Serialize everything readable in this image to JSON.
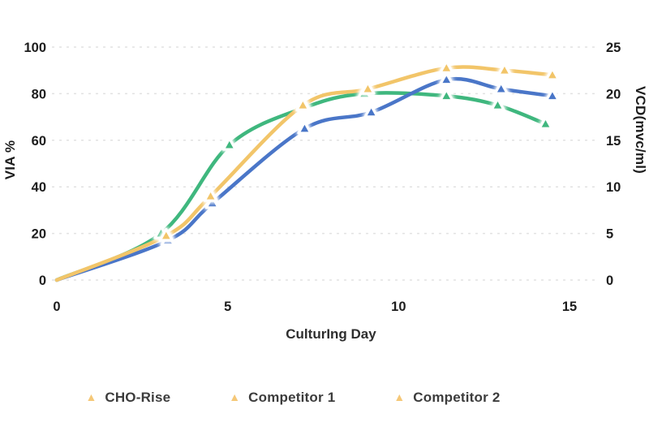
{
  "chart_data": {
    "type": "line",
    "title": "",
    "xlabel": "CulturIng Day",
    "ylabel_left": "VIA %",
    "ylabel_right": "VCD(mvc/ml)",
    "x_ticks": [
      0,
      5,
      10,
      15
    ],
    "left_ticks": [
      0,
      20,
      40,
      60,
      80,
      100
    ],
    "right_ticks": [
      0,
      5,
      10,
      15,
      20,
      25
    ],
    "xlim": [
      0,
      15
    ],
    "ylim_left": [
      0,
      100
    ],
    "ylim_right": [
      0,
      25
    ],
    "grid": "horizontal-dashed",
    "gridline_color": "#e2e2e2",
    "legend_position": "bottom",
    "legend_marker_color": "#F5C878",
    "legend_marker_icon": "triangle-up",
    "series": [
      {
        "name": "CHO-Rise",
        "color": "#F2C569",
        "x_days": [
          0,
          3.2,
          4.5,
          7.2,
          9.1,
          11.4,
          13.1,
          14.5
        ],
        "via_percent": [
          0,
          19,
          36,
          75,
          82,
          91,
          90,
          88
        ],
        "vcd_mvc_ml": [
          0,
          4.75,
          9,
          18.75,
          20.5,
          22.75,
          22.5,
          22
        ]
      },
      {
        "name": "Competitor 1",
        "color": "#4A76C8",
        "x_days": [
          0,
          3.25,
          4.55,
          7.25,
          9.2,
          11.4,
          13.0,
          14.5
        ],
        "via_percent": [
          0,
          17,
          33,
          65,
          72,
          86,
          82,
          79
        ],
        "vcd_mvc_ml": [
          0,
          4.25,
          8.25,
          16.25,
          18,
          21.5,
          20.5,
          19.75
        ]
      },
      {
        "name": "Competitor 2",
        "color": "#3FB77E",
        "x_days": [
          0,
          3.05,
          5.05,
          7.25,
          9.0,
          11.4,
          12.9,
          14.3
        ],
        "via_percent": [
          0,
          20,
          58,
          74,
          80,
          79,
          75,
          67
        ],
        "vcd_mvc_ml": [
          0,
          5,
          14.5,
          18.5,
          20,
          19.75,
          18.75,
          16.75
        ]
      }
    ]
  }
}
